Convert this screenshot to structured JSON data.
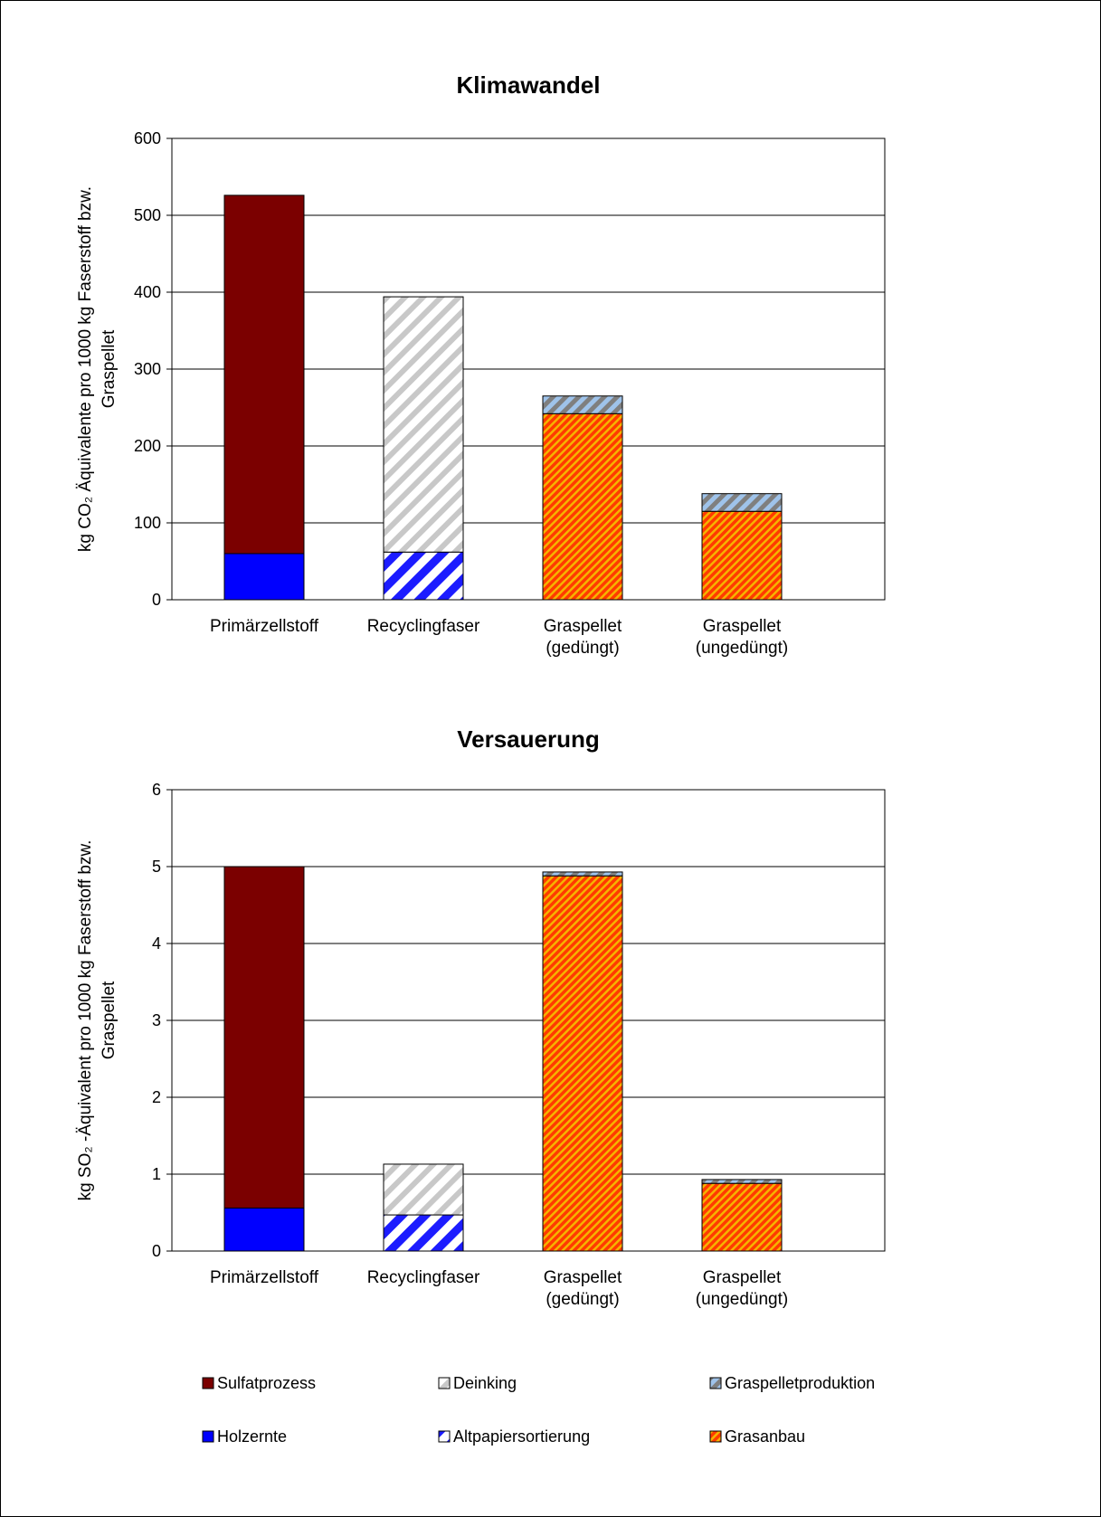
{
  "colors": {
    "Sulfatprozess": "#7b0000",
    "Holzernte": "#0000ff",
    "Deinking": "#c8c8c8",
    "Altpapiersortierung": "#1c1cff",
    "Graspelletproduktion": "#9fc3ea",
    "Grasanbau": "#ff3b00"
  },
  "chart_data": [
    {
      "type": "bar",
      "stacked": true,
      "title": "Klimawandel",
      "ylabel_lines": [
        "kg CO₂ Äquivalente pro 1000 kg Faserstoff bzw.",
        "Graspellet"
      ],
      "ylim": [
        0,
        600
      ],
      "yticks": [
        0,
        100,
        200,
        300,
        400,
        500,
        600
      ],
      "grid": true,
      "categories": [
        [
          "Primärzellstoff"
        ],
        [
          "Recyclingfaser"
        ],
        [
          "Graspellet",
          "(gedüngt)"
        ],
        [
          "Graspellet",
          "(ungedüngt)"
        ]
      ],
      "series": [
        {
          "name": "Holzernte",
          "values": [
            60,
            0,
            0,
            0
          ]
        },
        {
          "name": "Sulfatprozess",
          "values": [
            466,
            0,
            0,
            0
          ]
        },
        {
          "name": "Altpapiersortierung",
          "values": [
            0,
            62,
            0,
            0
          ]
        },
        {
          "name": "Deinking",
          "values": [
            0,
            332,
            0,
            0
          ]
        },
        {
          "name": "Grasanbau",
          "values": [
            0,
            0,
            242,
            115
          ]
        },
        {
          "name": "Graspelletproduktion",
          "values": [
            0,
            0,
            23,
            23
          ]
        }
      ]
    },
    {
      "type": "bar",
      "stacked": true,
      "title": "Versauerung",
      "ylabel_lines": [
        "kg SO₂ -Äquivalent pro 1000 kg Faserstoff bzw.",
        "Graspellet"
      ],
      "ylim": [
        0,
        6
      ],
      "yticks": [
        0,
        1,
        2,
        3,
        4,
        5,
        6
      ],
      "grid": true,
      "categories": [
        [
          "Primärzellstoff"
        ],
        [
          "Recyclingfaser"
        ],
        [
          "Graspellet",
          "(gedüngt)"
        ],
        [
          "Graspellet",
          "(ungedüngt)"
        ]
      ],
      "series": [
        {
          "name": "Holzernte",
          "values": [
            0.56,
            0,
            0,
            0
          ]
        },
        {
          "name": "Sulfatprozess",
          "values": [
            4.44,
            0,
            0,
            0
          ]
        },
        {
          "name": "Altpapiersortierung",
          "values": [
            0,
            0.47,
            0,
            0
          ]
        },
        {
          "name": "Deinking",
          "values": [
            0,
            0.66,
            0,
            0
          ]
        },
        {
          "name": "Grasanbau",
          "values": [
            0,
            0,
            4.88,
            0.88
          ]
        },
        {
          "name": "Graspelletproduktion",
          "values": [
            0,
            0,
            0.05,
            0.05
          ]
        }
      ]
    }
  ],
  "legend": {
    "placement": "bottom",
    "rows": [
      [
        "Sulfatprozess",
        "Deinking",
        "Graspelletproduktion"
      ],
      [
        "Holzernte",
        "Altpapiersortierung",
        "Grasanbau"
      ]
    ]
  }
}
